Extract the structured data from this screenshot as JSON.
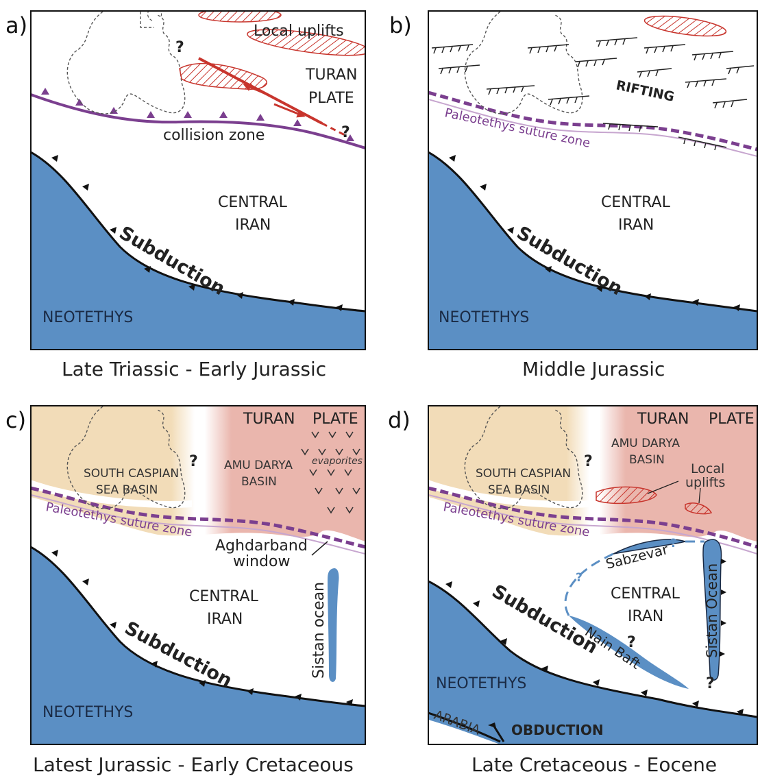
{
  "panels": {
    "a": {
      "letter": "a)",
      "caption": "Late Triassic - Early Jurassic",
      "local_uplifts": "Local uplifts",
      "turan": "TURAN",
      "plate": "PLATE",
      "collision_zone": "collision zone",
      "q1": "?",
      "q2": "?",
      "central": "CENTRAL",
      "iran": "IRAN",
      "subduction": "Subduction",
      "neotethys": "NEOTETHYS"
    },
    "b": {
      "letter": "b)",
      "caption": "Middle Jurassic",
      "rifting": "RIFTING",
      "suture": "Paleotethys suture zone",
      "central": "CENTRAL",
      "iran": "IRAN",
      "subduction": "Subduction",
      "neotethys": "NEOTETHYS"
    },
    "c": {
      "letter": "c)",
      "caption": "Latest Jurassic - Early Cretaceous",
      "turan": "TURAN",
      "plate": "PLATE",
      "south_caspian": "SOUTH CASPIAN",
      "sea_basin": "SEA BASIN",
      "amu": "AMU DARYA",
      "basin": "BASIN",
      "evaporites": "evaporites",
      "q": "?",
      "suture": "Paleotethys suture zone",
      "aghdarband": "Aghdarband",
      "window": "window",
      "central": "CENTRAL",
      "iran": "IRAN",
      "sistan": "Sistan ocean",
      "subduction": "Subduction",
      "neotethys": "NEOTETHYS"
    },
    "d": {
      "letter": "d)",
      "caption": "Late Cretaceous - Eocene",
      "turan": "TURAN",
      "plate": "PLATE",
      "amu": "AMU DARYA",
      "basin": "BASIN",
      "south_caspian": "SOUTH CASPIAN",
      "sea_basin": "SEA BASIN",
      "q": "?",
      "local": "Local",
      "uplifts": "uplifts",
      "suture": "Paleotethys suture zone",
      "sabzevar": "Sabzevar",
      "central": "CENTRAL",
      "iran": "IRAN",
      "sistan": "Sistan Ocean",
      "subduction": "Subduction",
      "nain": "Nain Baft",
      "neotethys": "NEOTETHYS",
      "arabia": "ARABIA",
      "obduction": "OBDUCTION",
      "q_sab1": "?",
      "q_sab2": "?",
      "q_nain": "?",
      "q_sistan": "?"
    }
  },
  "colors": {
    "ocean": "#5b8fc4",
    "suture": "#7b3f8f",
    "strike_slip": "#c8352d",
    "caspian_fill": "#f2dcb8",
    "amu_fill": "#eab6ad"
  }
}
